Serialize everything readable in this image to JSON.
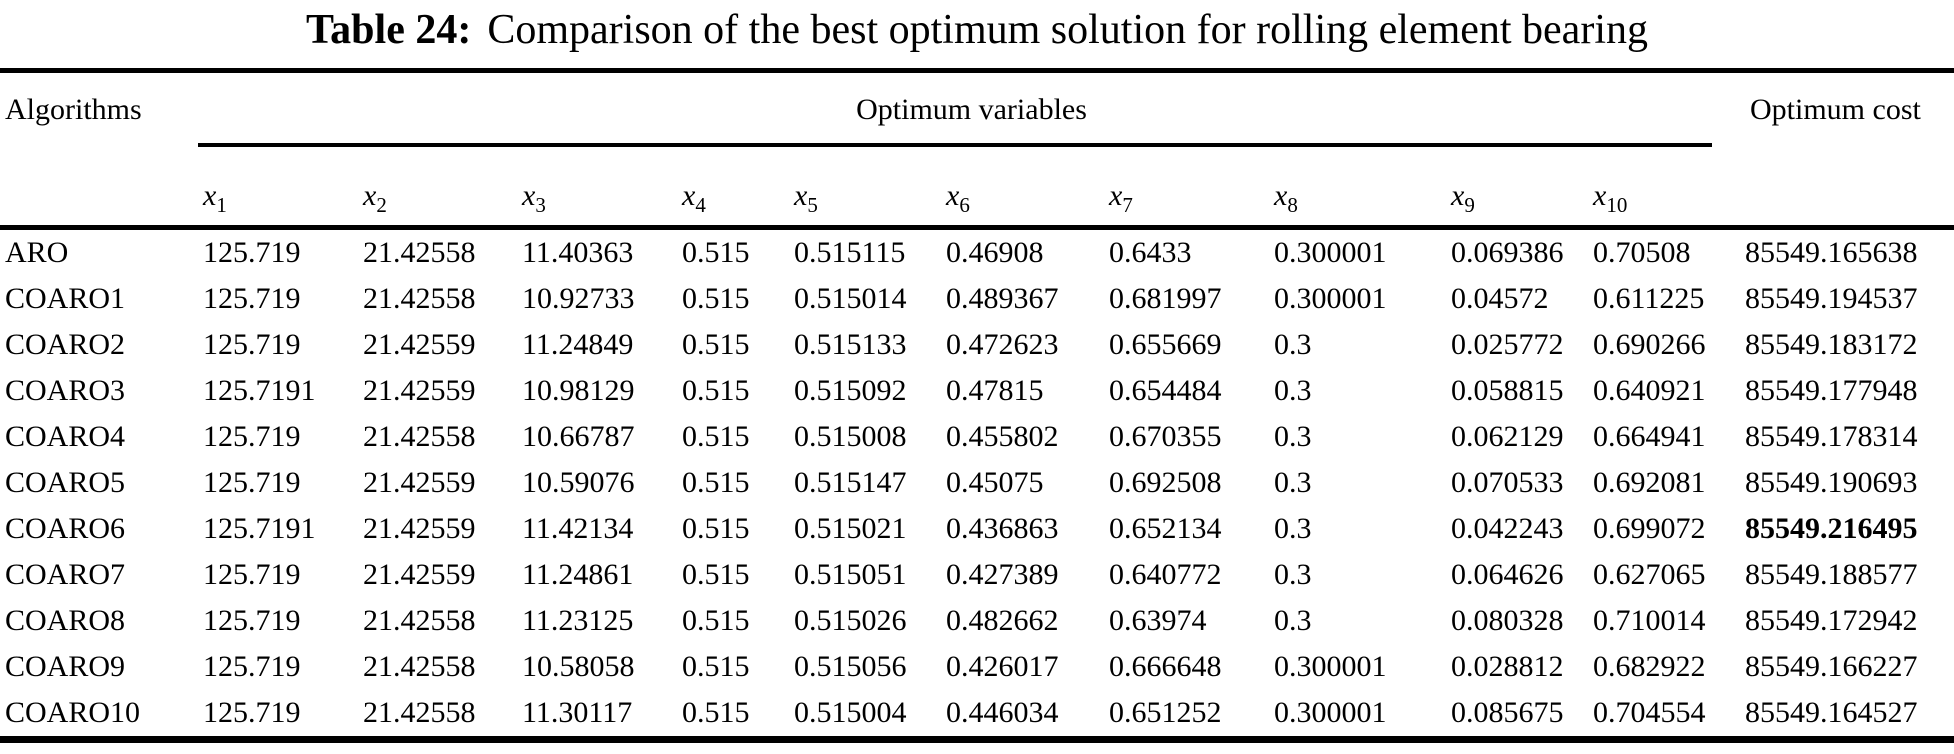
{
  "title": {
    "label": "Table 24:",
    "caption": "Comparison of the best optimum solution for rolling element bearing"
  },
  "table": {
    "header": {
      "algorithms": "Algorithms",
      "group": "Optimum variables",
      "cost": "Optimum cost",
      "variables": [
        "x1",
        "x2",
        "x3",
        "x4",
        "x5",
        "x6",
        "x7",
        "x8",
        "x9",
        "x10"
      ]
    },
    "rows": [
      {
        "name": "ARO",
        "values": [
          "125.719",
          "21.42558",
          "11.40363",
          "0.515",
          "0.515115",
          "0.46908",
          "0.6433",
          "0.300001",
          "0.069386",
          "0.70508"
        ],
        "cost": "85549.165638",
        "cost_bold": false
      },
      {
        "name": "COARO1",
        "values": [
          "125.719",
          "21.42558",
          "10.92733",
          "0.515",
          "0.515014",
          "0.489367",
          "0.681997",
          "0.300001",
          "0.04572",
          "0.611225"
        ],
        "cost": "85549.194537",
        "cost_bold": false
      },
      {
        "name": "COARO2",
        "values": [
          "125.719",
          "21.42559",
          "11.24849",
          "0.515",
          "0.515133",
          "0.472623",
          "0.655669",
          "0.3",
          "0.025772",
          "0.690266"
        ],
        "cost": "85549.183172",
        "cost_bold": false
      },
      {
        "name": "COARO3",
        "values": [
          "125.7191",
          "21.42559",
          "10.98129",
          "0.515",
          "0.515092",
          "0.47815",
          "0.654484",
          "0.3",
          "0.058815",
          "0.640921"
        ],
        "cost": "85549.177948",
        "cost_bold": false
      },
      {
        "name": "COARO4",
        "values": [
          "125.719",
          "21.42558",
          "10.66787",
          "0.515",
          "0.515008",
          "0.455802",
          "0.670355",
          "0.3",
          "0.062129",
          "0.664941"
        ],
        "cost": "85549.178314",
        "cost_bold": false
      },
      {
        "name": "COARO5",
        "values": [
          "125.719",
          "21.42559",
          "10.59076",
          "0.515",
          "0.515147",
          "0.45075",
          "0.692508",
          "0.3",
          "0.070533",
          "0.692081"
        ],
        "cost": "85549.190693",
        "cost_bold": false
      },
      {
        "name": "COARO6",
        "values": [
          "125.7191",
          "21.42559",
          "11.42134",
          "0.515",
          "0.515021",
          "0.436863",
          "0.652134",
          "0.3",
          "0.042243",
          "0.699072"
        ],
        "cost": "85549.216495",
        "cost_bold": true
      },
      {
        "name": "COARO7",
        "values": [
          "125.719",
          "21.42559",
          "11.24861",
          "0.515",
          "0.515051",
          "0.427389",
          "0.640772",
          "0.3",
          "0.064626",
          "0.627065"
        ],
        "cost": "85549.188577",
        "cost_bold": false
      },
      {
        "name": "COARO8",
        "values": [
          "125.719",
          "21.42558",
          "11.23125",
          "0.515",
          "0.515026",
          "0.482662",
          "0.63974",
          "0.3",
          "0.080328",
          "0.710014"
        ],
        "cost": "85549.172942",
        "cost_bold": false
      },
      {
        "name": "COARO9",
        "values": [
          "125.719",
          "21.42558",
          "10.58058",
          "0.515",
          "0.515056",
          "0.426017",
          "0.666648",
          "0.300001",
          "0.028812",
          "0.682922"
        ],
        "cost": "85549.166227",
        "cost_bold": false
      },
      {
        "name": "COARO10",
        "values": [
          "125.719",
          "21.42558",
          "11.30117",
          "0.515",
          "0.515004",
          "0.446034",
          "0.651252",
          "0.300001",
          "0.085675",
          "0.704554"
        ],
        "cost": "85549.164527",
        "cost_bold": false
      }
    ]
  },
  "colors": {
    "text": "#000000",
    "background": "#ffffff",
    "rule": "#000000"
  }
}
